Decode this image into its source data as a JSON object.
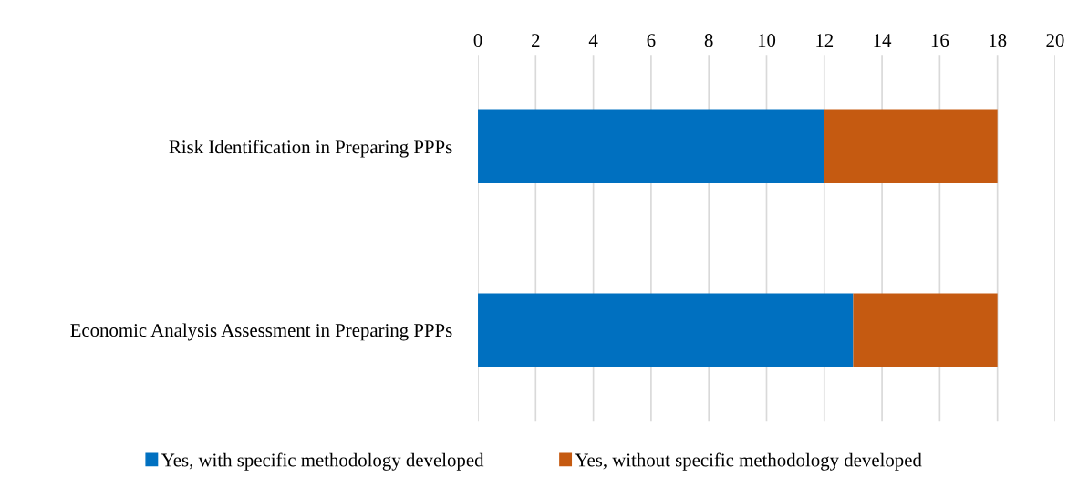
{
  "chart_data": {
    "type": "bar",
    "orientation": "horizontal",
    "stacked": true,
    "categories": [
      "Risk Identification in Preparing PPPs",
      "Economic Analysis Assessment in Preparing PPPs"
    ],
    "series": [
      {
        "name": "Yes, with specific methodology developed",
        "color": "#0070c0",
        "values": [
          12,
          13
        ]
      },
      {
        "name": "Yes, without specific methodology developed",
        "color": "#c55a11",
        "values": [
          6,
          5
        ]
      }
    ],
    "xlim": [
      0,
      20
    ],
    "xticks": [
      0,
      2,
      4,
      6,
      8,
      10,
      12,
      14,
      16,
      18,
      20
    ],
    "grid": "x",
    "legend": "bottom"
  }
}
